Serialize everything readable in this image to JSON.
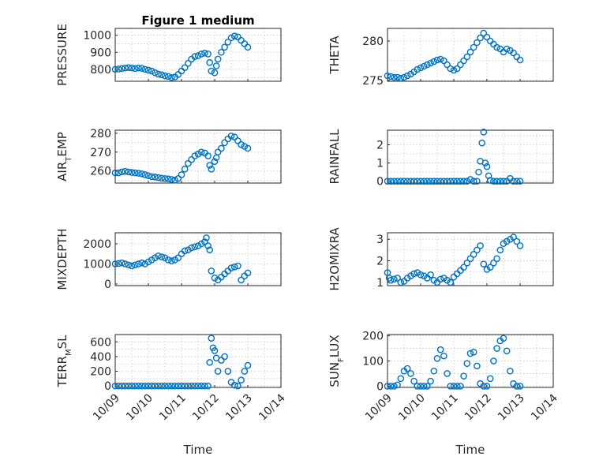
{
  "figure": {
    "title": "Figure 1 medium",
    "shared_xlabel": "Time"
  },
  "chart_data": [
    {
      "type": "scatter",
      "ylabel": "PRESSURE",
      "x_ticks": [],
      "xlim": [
        0,
        5
      ],
      "ylim": [
        730,
        1040
      ],
      "y_ticks": [
        "800",
        "900",
        "1000"
      ],
      "y_tick_values": [
        800,
        900,
        1000
      ],
      "grid": true,
      "marker": "open-circle",
      "color": "#0072BD",
      "x": [
        0,
        0.1,
        0.2,
        0.3,
        0.4,
        0.5,
        0.6,
        0.7,
        0.8,
        0.9,
        1.0,
        1.1,
        1.2,
        1.3,
        1.4,
        1.5,
        1.6,
        1.7,
        1.8,
        1.9,
        2.0,
        2.1,
        2.2,
        2.3,
        2.4,
        2.5,
        2.6,
        2.7,
        2.8,
        2.85,
        2.9,
        3.0,
        3.05,
        3.1,
        3.2,
        3.3,
        3.4,
        3.5,
        3.6,
        3.7,
        3.8,
        3.9,
        4.0
      ],
      "y": [
        800,
        802,
        805,
        808,
        810,
        808,
        805,
        808,
        806,
        800,
        795,
        790,
        780,
        772,
        768,
        762,
        758,
        752,
        755,
        770,
        790,
        810,
        835,
        860,
        875,
        880,
        890,
        895,
        890,
        840,
        790,
        780,
        820,
        860,
        900,
        930,
        960,
        985,
        995,
        990,
        970,
        950,
        930
      ]
    },
    {
      "type": "scatter",
      "ylabel": "THETA",
      "x_ticks": [],
      "xlim": [
        0,
        5
      ],
      "ylim": [
        274.9,
        281.6
      ],
      "y_ticks": [
        "275",
        "280"
      ],
      "y_tick_values": [
        275,
        280
      ],
      "grid": true,
      "marker": "open-circle",
      "color": "#0072BD",
      "x": [
        0,
        0.1,
        0.2,
        0.3,
        0.4,
        0.5,
        0.6,
        0.7,
        0.8,
        0.9,
        1.0,
        1.1,
        1.2,
        1.3,
        1.4,
        1.5,
        1.6,
        1.7,
        1.8,
        1.9,
        2.0,
        2.1,
        2.2,
        2.3,
        2.4,
        2.5,
        2.6,
        2.7,
        2.8,
        2.9,
        3.0,
        3.1,
        3.2,
        3.3,
        3.4,
        3.5,
        3.6,
        3.7,
        3.8,
        3.9,
        4.0
      ],
      "y": [
        275.6,
        275.5,
        275.4,
        275.4,
        275.3,
        275.4,
        275.6,
        275.8,
        276.1,
        276.4,
        276.6,
        276.8,
        277.0,
        277.2,
        277.4,
        277.6,
        277.7,
        277.5,
        277.0,
        276.5,
        276.3,
        276.5,
        277.0,
        277.5,
        278.0,
        278.6,
        279.2,
        279.8,
        280.4,
        281.0,
        280.5,
        280.0,
        279.6,
        279.2,
        279.0,
        278.6,
        279.0,
        278.8,
        278.5,
        278.0,
        277.6
      ]
    },
    {
      "type": "scatter",
      "ylabel": "AIR_TEMP",
      "x_ticks": [],
      "xlim": [
        0,
        5
      ],
      "ylim": [
        253.6,
        281.6
      ],
      "y_ticks": [
        "260",
        "270",
        "280"
      ],
      "y_tick_values": [
        260,
        270,
        280
      ],
      "grid": true,
      "marker": "open-circle",
      "color": "#0072BD",
      "x": [
        0,
        0.1,
        0.2,
        0.3,
        0.4,
        0.5,
        0.6,
        0.7,
        0.8,
        0.9,
        1.0,
        1.1,
        1.2,
        1.3,
        1.4,
        1.5,
        1.6,
        1.7,
        1.8,
        1.9,
        2.0,
        2.1,
        2.2,
        2.3,
        2.4,
        2.5,
        2.6,
        2.7,
        2.8,
        2.85,
        2.9,
        3.0,
        3.05,
        3.1,
        3.2,
        3.3,
        3.4,
        3.5,
        3.6,
        3.7,
        3.8,
        3.9,
        4.0
      ],
      "y": [
        259,
        259,
        259.5,
        259.8,
        259.5,
        259.2,
        259,
        258.8,
        258.5,
        258,
        257.5,
        257,
        256.8,
        256.5,
        256.2,
        256,
        255.8,
        255.5,
        255.2,
        256,
        258,
        261,
        264,
        266,
        268,
        269,
        270,
        269.5,
        268,
        263,
        261,
        265,
        267,
        270,
        272,
        275,
        277,
        278.5,
        278,
        276,
        274,
        273,
        272
      ]
    },
    {
      "type": "scatter",
      "ylabel": "RAINFALL",
      "x_ticks": [],
      "xlim": [
        0,
        5
      ],
      "ylim": [
        -0.1,
        2.8
      ],
      "y_ticks": [
        "0",
        "1",
        "2"
      ],
      "y_tick_values": [
        0,
        1,
        2
      ],
      "grid": true,
      "marker": "open-circle",
      "color": "#0072BD",
      "x": [
        0,
        0.1,
        0.2,
        0.3,
        0.4,
        0.5,
        0.6,
        0.7,
        0.8,
        0.9,
        1.0,
        1.1,
        1.2,
        1.3,
        1.4,
        1.5,
        1.6,
        1.7,
        1.8,
        1.9,
        2.0,
        2.1,
        2.2,
        2.3,
        2.4,
        2.5,
        2.6,
        2.7,
        2.75,
        2.8,
        2.85,
        2.9,
        2.95,
        3.0,
        3.05,
        3.1,
        3.2,
        3.3,
        3.4,
        3.5,
        3.6,
        3.7,
        3.8,
        3.9,
        4.0
      ],
      "y": [
        0,
        0,
        0,
        0,
        0,
        0,
        0,
        0,
        0,
        0,
        0,
        0,
        0,
        0,
        0,
        0,
        0,
        0,
        0,
        0,
        0,
        0,
        0,
        0,
        0,
        0.1,
        0,
        0,
        0.5,
        1.1,
        2.1,
        2.7,
        1.0,
        0.8,
        0.3,
        0.05,
        0,
        0,
        0,
        0,
        0,
        0.15,
        0,
        0,
        0
      ]
    },
    {
      "type": "scatter",
      "ylabel": "MIXDEPTH",
      "x_ticks": [],
      "xlim": [
        0,
        5
      ],
      "ylim": [
        -80,
        2550
      ],
      "y_ticks": [
        "0",
        "1000",
        "2000"
      ],
      "y_tick_values": [
        0,
        1000,
        2000
      ],
      "grid": true,
      "marker": "open-circle",
      "color": "#0072BD",
      "x": [
        0,
        0.1,
        0.2,
        0.3,
        0.4,
        0.5,
        0.6,
        0.7,
        0.8,
        0.9,
        1.0,
        1.1,
        1.2,
        1.3,
        1.4,
        1.5,
        1.6,
        1.7,
        1.8,
        1.9,
        2.0,
        2.1,
        2.2,
        2.3,
        2.4,
        2.5,
        2.6,
        2.7,
        2.75,
        2.8,
        2.85,
        2.9,
        3.0,
        3.1,
        3.2,
        3.3,
        3.4,
        3.5,
        3.6,
        3.7,
        3.8,
        3.9,
        4.0
      ],
      "y": [
        1000,
        1020,
        1050,
        1000,
        950,
        900,
        950,
        1000,
        1050,
        1000,
        1100,
        1200,
        1300,
        1400,
        1350,
        1300,
        1200,
        1150,
        1200,
        1300,
        1500,
        1650,
        1700,
        1800,
        1850,
        1900,
        2000,
        2100,
        2300,
        1900,
        1700,
        650,
        300,
        200,
        350,
        500,
        650,
        800,
        850,
        900,
        200,
        400,
        550
      ]
    },
    {
      "type": "scatter",
      "ylabel": "H2OMIXRA",
      "x_ticks": [],
      "xlim": [
        0,
        5
      ],
      "ylim": [
        0.85,
        3.3
      ],
      "y_ticks": [
        "1",
        "2",
        "3"
      ],
      "y_tick_values": [
        1,
        2,
        3
      ],
      "grid": true,
      "marker": "open-circle",
      "color": "#0072BD",
      "x": [
        0,
        0.05,
        0.1,
        0.2,
        0.3,
        0.4,
        0.5,
        0.6,
        0.7,
        0.8,
        0.9,
        1.0,
        1.1,
        1.2,
        1.3,
        1.4,
        1.5,
        1.6,
        1.7,
        1.8,
        1.9,
        2.0,
        2.1,
        2.2,
        2.3,
        2.4,
        2.5,
        2.6,
        2.7,
        2.8,
        2.9,
        3.0,
        3.1,
        3.2,
        3.3,
        3.4,
        3.5,
        3.6,
        3.7,
        3.8,
        3.9,
        4.0
      ],
      "y": [
        1.45,
        1.2,
        1.1,
        1.15,
        1.2,
        1.0,
        1.05,
        1.2,
        1.3,
        1.4,
        1.45,
        1.35,
        1.3,
        1.2,
        1.35,
        1.1,
        1.0,
        1.15,
        1.2,
        1.1,
        1.0,
        1.25,
        1.4,
        1.55,
        1.7,
        1.9,
        2.1,
        2.3,
        2.5,
        2.7,
        1.85,
        1.6,
        1.7,
        1.9,
        2.1,
        2.5,
        2.8,
        2.9,
        3.0,
        3.1,
        2.9,
        2.7
      ]
    },
    {
      "type": "scatter",
      "ylabel": "TERR_MSL",
      "x_ticks": [
        "10/09",
        "10/10",
        "10/11",
        "10/12",
        "10/13",
        "10/14"
      ],
      "x_tick_values": [
        0,
        1,
        2,
        3,
        4,
        5
      ],
      "xlim": [
        0,
        5
      ],
      "ylim": [
        -20,
        700
      ],
      "y_ticks": [
        "0",
        "200",
        "400",
        "600"
      ],
      "y_tick_values": [
        0,
        200,
        400,
        600
      ],
      "grid": true,
      "marker": "open-circle",
      "color": "#0072BD",
      "x": [
        0,
        0.1,
        0.2,
        0.3,
        0.4,
        0.5,
        0.6,
        0.7,
        0.8,
        0.9,
        1.0,
        1.1,
        1.2,
        1.3,
        1.4,
        1.5,
        1.6,
        1.7,
        1.8,
        1.9,
        2.0,
        2.1,
        2.2,
        2.3,
        2.4,
        2.5,
        2.6,
        2.7,
        2.8,
        2.85,
        2.9,
        2.95,
        3.0,
        3.05,
        3.1,
        3.2,
        3.3,
        3.4,
        3.5,
        3.6,
        3.7,
        3.8,
        3.9,
        4.0
      ],
      "y": [
        0,
        0,
        0,
        0,
        0,
        0,
        0,
        0,
        0,
        0,
        0,
        0,
        0,
        0,
        0,
        0,
        0,
        0,
        0,
        0,
        0,
        0,
        0,
        0,
        0,
        0,
        0,
        0,
        0,
        320,
        650,
        520,
        480,
        380,
        200,
        350,
        400,
        200,
        50,
        10,
        0,
        80,
        200,
        280
      ]
    },
    {
      "type": "scatter",
      "ylabel": "SUN_FLUX",
      "x_ticks": [
        "10/09",
        "10/10",
        "10/11",
        "10/12",
        "10/13",
        "10/14"
      ],
      "x_tick_values": [
        0,
        1,
        2,
        3,
        4,
        5
      ],
      "xlim": [
        0,
        5
      ],
      "ylim": [
        -5,
        205
      ],
      "y_ticks": [
        "0",
        "100",
        "200"
      ],
      "y_tick_values": [
        0,
        100,
        200
      ],
      "grid": true,
      "marker": "open-circle",
      "color": "#0072BD",
      "x": [
        0,
        0.1,
        0.2,
        0.3,
        0.4,
        0.5,
        0.6,
        0.7,
        0.8,
        0.9,
        1.0,
        1.1,
        1.2,
        1.3,
        1.4,
        1.5,
        1.6,
        1.7,
        1.8,
        1.9,
        2.0,
        2.1,
        2.2,
        2.3,
        2.4,
        2.5,
        2.6,
        2.7,
        2.8,
        2.9,
        3.0,
        3.1,
        3.2,
        3.3,
        3.4,
        3.5,
        3.6,
        3.7,
        3.8,
        3.9,
        4.0
      ],
      "y": [
        0,
        0,
        0,
        5,
        30,
        60,
        70,
        50,
        20,
        0,
        0,
        0,
        0,
        20,
        60,
        110,
        145,
        120,
        50,
        0,
        0,
        0,
        0,
        40,
        90,
        130,
        135,
        80,
        10,
        0,
        0,
        30,
        100,
        150,
        180,
        190,
        140,
        60,
        10,
        0,
        0
      ]
    }
  ]
}
